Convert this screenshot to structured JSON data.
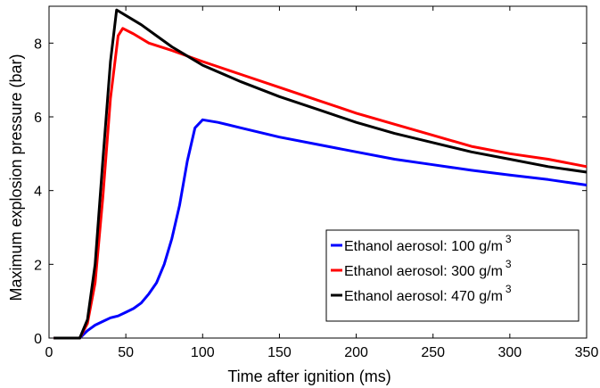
{
  "chart_data": {
    "type": "line",
    "title": "",
    "xlabel": "Time after ignition (ms)",
    "ylabel": "Maximum explosion pressure (bar)",
    "xlim": [
      0,
      350
    ],
    "ylim": [
      0,
      9
    ],
    "xticks": [
      "0",
      "50",
      "100",
      "150",
      "200",
      "250",
      "300",
      "350"
    ],
    "yticks": [
      "0",
      "2",
      "4",
      "6",
      "8"
    ],
    "grid": false,
    "legend_position": "bottom-right",
    "series": [
      {
        "name": "Ethanol aerosol: 100 g/m",
        "name_sup": "3",
        "color": "#0000ff",
        "x": [
          3,
          20,
          25,
          30,
          35,
          40,
          45,
          50,
          55,
          60,
          65,
          70,
          75,
          80,
          85,
          90,
          95,
          100,
          110,
          125,
          150,
          175,
          200,
          225,
          250,
          275,
          300,
          325,
          350
        ],
        "y": [
          0.0,
          0.0,
          0.2,
          0.35,
          0.45,
          0.55,
          0.6,
          0.7,
          0.8,
          0.95,
          1.2,
          1.5,
          2.0,
          2.7,
          3.6,
          4.8,
          5.7,
          5.92,
          5.85,
          5.7,
          5.45,
          5.25,
          5.05,
          4.85,
          4.7,
          4.55,
          4.42,
          4.3,
          4.15
        ]
      },
      {
        "name": "Ethanol aerosol: 300 g/m",
        "name_sup": "3",
        "color": "#ff0000",
        "x": [
          3,
          20,
          25,
          30,
          35,
          40,
          45,
          48,
          55,
          65,
          80,
          100,
          125,
          150,
          175,
          200,
          225,
          250,
          275,
          300,
          325,
          350
        ],
        "y": [
          0.0,
          0.0,
          0.4,
          1.5,
          3.8,
          6.5,
          8.2,
          8.4,
          8.25,
          8.0,
          7.8,
          7.5,
          7.15,
          6.8,
          6.45,
          6.1,
          5.8,
          5.5,
          5.2,
          5.0,
          4.85,
          4.65
        ]
      },
      {
        "name": "Ethanol aerosol: 470 g/m",
        "name_sup": "3",
        "color": "#000000",
        "x": [
          3,
          20,
          25,
          30,
          35,
          40,
          44,
          50,
          60,
          70,
          80,
          90,
          100,
          125,
          150,
          175,
          200,
          225,
          250,
          275,
          300,
          325,
          350
        ],
        "y": [
          0.0,
          0.0,
          0.5,
          2.0,
          4.8,
          7.5,
          8.9,
          8.75,
          8.5,
          8.2,
          7.9,
          7.65,
          7.4,
          6.95,
          6.55,
          6.2,
          5.85,
          5.55,
          5.3,
          5.05,
          4.85,
          4.65,
          4.5
        ]
      }
    ]
  }
}
